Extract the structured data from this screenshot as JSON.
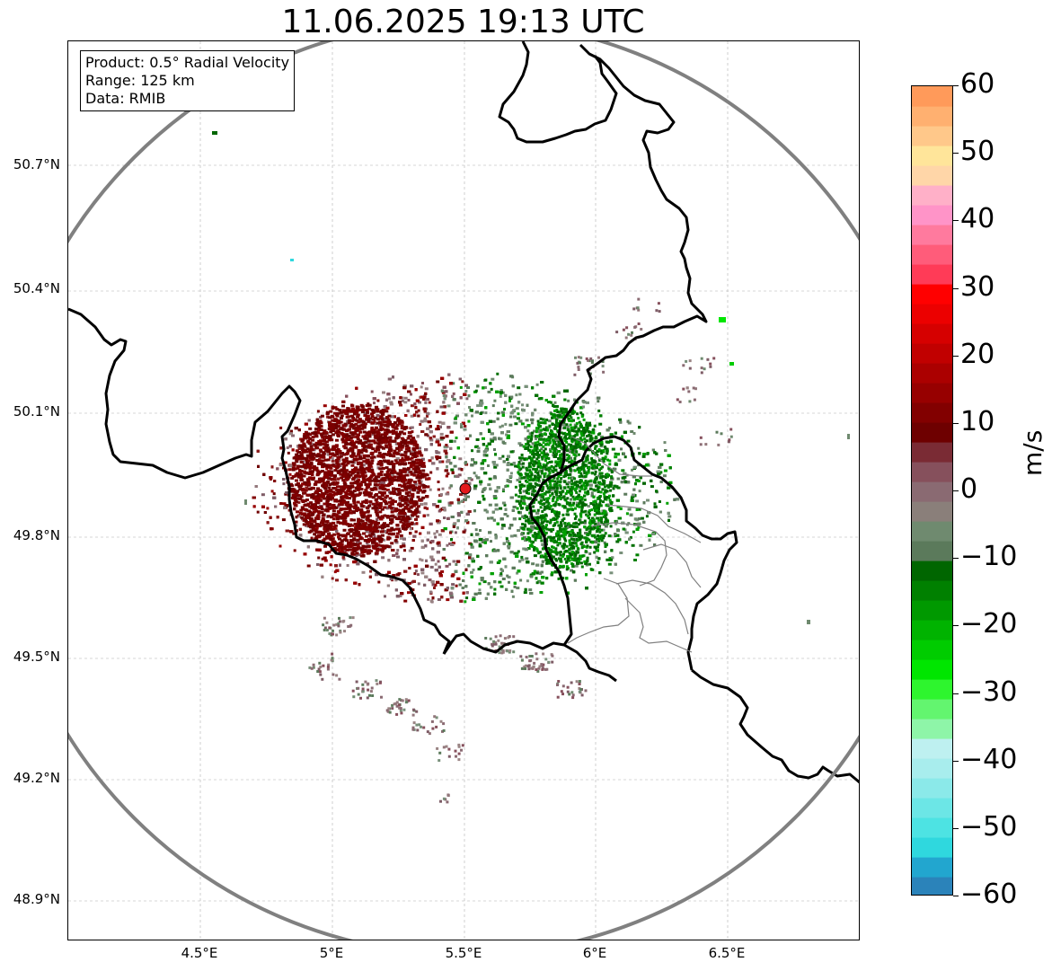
{
  "title": "11.06.2025 19:13 UTC",
  "info_box": {
    "product": "Product: 0.5° Radial Velocity",
    "range": "Range: 125 km",
    "data_source": "Data: RMIB"
  },
  "map": {
    "lat_ticks": [
      "50.7°N",
      "50.4°N",
      "50.1°N",
      "49.8°N",
      "49.5°N",
      "49.2°N",
      "48.9°N"
    ],
    "lon_ticks": [
      "4.5°E",
      "5°E",
      "5.5°E",
      "6°E",
      "6.5°E"
    ],
    "radar_site": {
      "lon": 5.5,
      "lat": 49.91,
      "marker_color": "#e31a1c"
    },
    "range_ring_color": "#808080",
    "border_color": "#000000",
    "admin_border_color": "#808080"
  },
  "colorbar": {
    "label": "m/s",
    "tick_labels": [
      "60",
      "50",
      "40",
      "30",
      "20",
      "10",
      "0",
      "−10",
      "−20",
      "−30",
      "−40",
      "−50",
      "−60"
    ],
    "min": -60,
    "max": 60,
    "colors_bottom_to_top": [
      "#2b83ba",
      "#22a6cf",
      "#2fd8de",
      "#4de3e3",
      "#6ce6e6",
      "#8be9e9",
      "#a8eded",
      "#bef0f0",
      "#8ef5a8",
      "#63f56f",
      "#2ef52e",
      "#00e600",
      "#00cc00",
      "#00b300",
      "#009900",
      "#008000",
      "#006600",
      "#5b7a5b",
      "#6f8a6f",
      "#8a7f7a",
      "#8a6a72",
      "#86505c",
      "#7a2b34",
      "#6e0000",
      "#820000",
      "#970000",
      "#ab0000",
      "#c10000",
      "#d60000",
      "#ec0000",
      "#ff0000",
      "#ff3b57",
      "#ff5c7a",
      "#ff7a9e",
      "#ff94c8",
      "#ffb0c8",
      "#ffd6a8",
      "#ffe59a",
      "#ffc88a",
      "#ffb070",
      "#ff9a5a"
    ]
  }
}
